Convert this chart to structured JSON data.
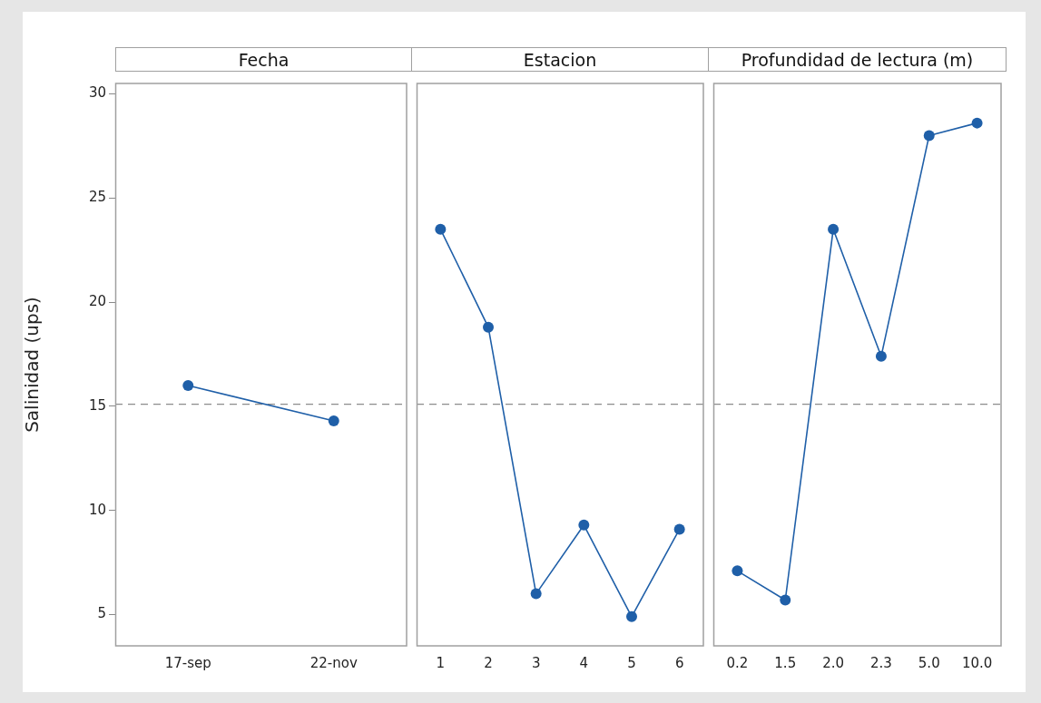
{
  "chart_data": [
    {
      "type": "line",
      "title": "Fecha",
      "ylabel": "Salinidad (ups)",
      "categories": [
        "17-sep",
        "22-nov"
      ],
      "values": [
        16.0,
        14.3
      ],
      "color": "#1f5fa8",
      "marker": "circle",
      "ylim": [
        3.5,
        30.5
      ],
      "yticks": [
        5,
        10,
        15,
        20,
        25,
        30
      ],
      "ref_lines": [
        {
          "axis": "y",
          "value": 15.1,
          "color": "#8c8c8c",
          "line_style": "dashed"
        }
      ]
    },
    {
      "type": "line",
      "title": "Estacion",
      "categories": [
        "1",
        "2",
        "3",
        "4",
        "5",
        "6"
      ],
      "values": [
        23.5,
        18.8,
        6.0,
        9.3,
        4.9,
        9.1
      ],
      "color": "#1f5fa8",
      "marker": "circle",
      "ylim": [
        3.5,
        30.5
      ],
      "yticks": [
        5,
        10,
        15,
        20,
        25,
        30
      ],
      "tick_labels": "x",
      "ref_lines": [
        {
          "axis": "y",
          "value": 15.1,
          "color": "#8c8c8c",
          "line_style": "dashed"
        }
      ]
    },
    {
      "type": "line",
      "title": "Profundidad de lectura (m)",
      "categories": [
        "0.2",
        "1.5",
        "2.0",
        "2.3",
        "5.0",
        "10.0"
      ],
      "values": [
        7.1,
        5.7,
        23.5,
        17.4,
        28.0,
        28.6
      ],
      "color": "#1f5fa8",
      "marker": "circle",
      "ylim": [
        3.5,
        30.5
      ],
      "yticks": [
        5,
        10,
        15,
        20,
        25,
        30
      ],
      "tick_labels": "x",
      "ref_lines": [
        {
          "axis": "y",
          "value": 15.1,
          "color": "#8c8c8c",
          "line_style": "dashed"
        }
      ]
    }
  ]
}
